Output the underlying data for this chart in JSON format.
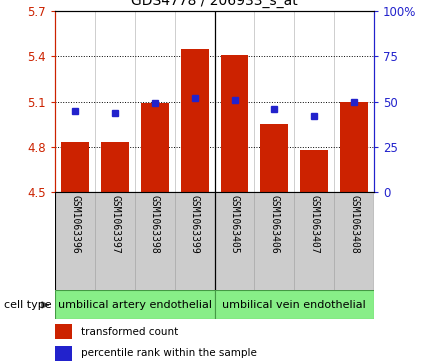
{
  "title": "GDS4778 / 206933_s_at",
  "samples": [
    "GSM1063396",
    "GSM1063397",
    "GSM1063398",
    "GSM1063399",
    "GSM1063405",
    "GSM1063406",
    "GSM1063407",
    "GSM1063408"
  ],
  "bar_values": [
    4.83,
    4.83,
    5.09,
    5.45,
    5.41,
    4.95,
    4.78,
    5.1
  ],
  "dot_values_pct": [
    45,
    44,
    49,
    52,
    51,
    46,
    42,
    50
  ],
  "ylim": [
    4.5,
    5.7
  ],
  "yticks_left": [
    4.5,
    4.8,
    5.1,
    5.4,
    5.7
  ],
  "yticks_right": [
    0,
    25,
    50,
    75,
    100
  ],
  "yticks_right_labels": [
    "0",
    "25",
    "50",
    "75",
    "100%"
  ],
  "bar_color": "#cc2200",
  "dot_color": "#2222cc",
  "cell_type_bg": "#88ee88",
  "cell_type_labels": [
    "umbilical artery endothelial",
    "umbilical vein endothelial"
  ],
  "legend_items": [
    "transformed count",
    "percentile rank within the sample"
  ],
  "cell_type_label": "cell type",
  "bar_width": 0.7,
  "sample_box_color": "#cccccc",
  "sample_box_edge": "#aaaaaa"
}
